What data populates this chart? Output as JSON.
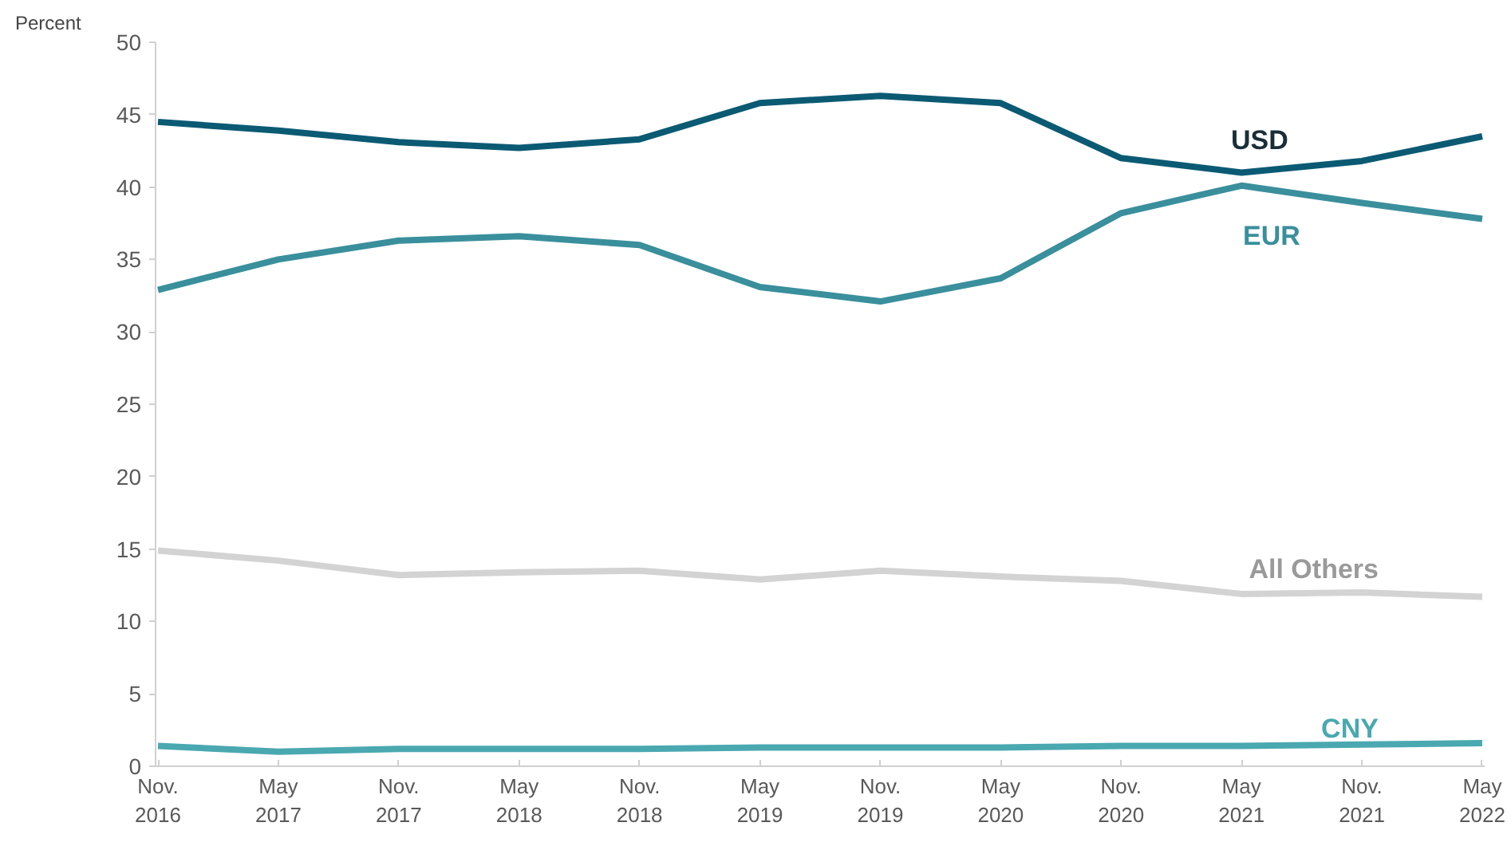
{
  "chart_data": {
    "type": "line",
    "ylabel": "Percent",
    "categories": [
      "Nov.\n2016",
      "May\n2017",
      "Nov.\n2017",
      "May\n2018",
      "Nov.\n2018",
      "May\n2019",
      "Nov.\n2019",
      "May\n2020",
      "Nov.\n2020",
      "May\n2021",
      "Nov.\n2021",
      "May\n2022"
    ],
    "ylim": [
      0,
      50
    ],
    "yticks": [
      0,
      5,
      10,
      15,
      20,
      25,
      30,
      35,
      40,
      45,
      50
    ],
    "grid": false,
    "legend": false,
    "marker": "none",
    "line_style": "solid",
    "series": [
      {
        "name": "USD",
        "color": "#0b5a73",
        "values": [
          44.5,
          43.9,
          43.1,
          42.7,
          43.3,
          45.8,
          46.3,
          45.8,
          42.0,
          41.0,
          41.8,
          43.5
        ]
      },
      {
        "name": "EUR",
        "color": "#3a8f9c",
        "values": [
          32.9,
          35.0,
          36.3,
          36.6,
          36.0,
          33.1,
          32.1,
          33.7,
          38.2,
          40.1,
          38.9,
          37.8
        ]
      },
      {
        "name": "All Others",
        "color": "#d3d3d3",
        "values": [
          14.9,
          14.2,
          13.2,
          13.4,
          13.5,
          12.9,
          13.5,
          13.1,
          12.8,
          11.9,
          12.0,
          11.7
        ]
      },
      {
        "name": "CNY",
        "color": "#4aa8b0",
        "values": [
          1.4,
          1.0,
          1.2,
          1.2,
          1.2,
          1.3,
          1.3,
          1.3,
          1.4,
          1.4,
          1.5,
          1.6
        ]
      }
    ]
  }
}
